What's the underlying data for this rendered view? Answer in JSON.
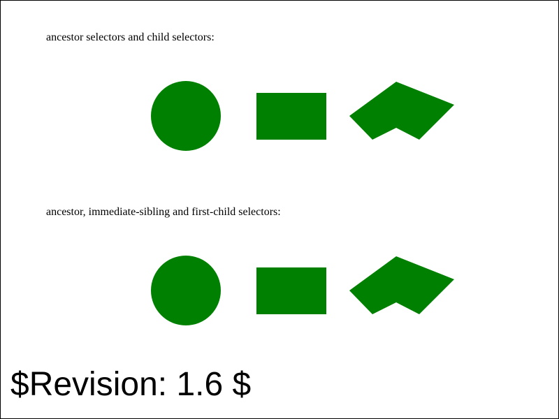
{
  "sections": [
    {
      "caption": "ancestor selectors and child selectors:",
      "shapes": [
        "circle",
        "rectangle",
        "polygon"
      ],
      "fill": "#008000"
    },
    {
      "caption": "ancestor, immediate-sibling and first-child selectors:",
      "shapes": [
        "circle",
        "rectangle",
        "polygon"
      ],
      "fill": "#008000"
    }
  ],
  "revision": "$Revision: 1.6 $"
}
